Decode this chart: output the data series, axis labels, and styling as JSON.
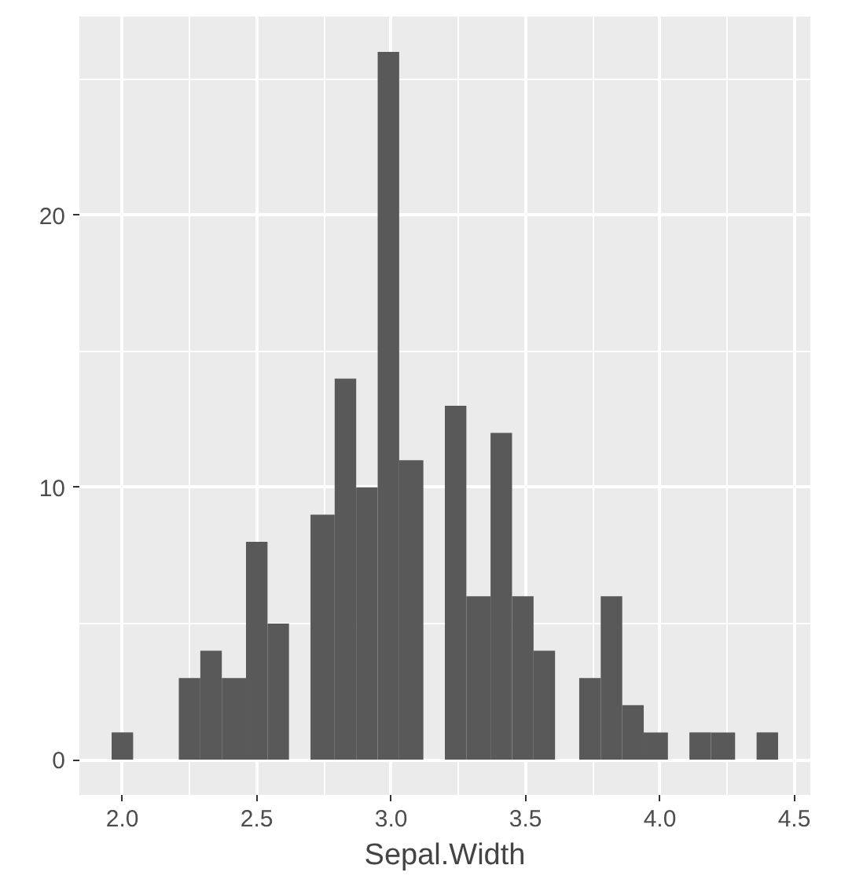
{
  "chart_data": {
    "type": "histogram",
    "xlabel": "Sepal.Width",
    "bins": [
      1.96,
      2.04,
      2.21,
      2.29,
      2.37,
      2.46,
      2.54,
      2.62,
      2.7,
      2.79,
      2.87,
      2.95,
      3.03,
      3.12,
      3.2,
      3.28,
      3.37,
      3.45,
      3.53,
      3.61,
      3.7,
      3.78,
      3.86,
      3.94,
      4.03,
      4.11,
      4.19,
      4.28,
      4.36,
      4.44
    ],
    "values": [
      1,
      0,
      3,
      4,
      3,
      8,
      5,
      0,
      9,
      14,
      10,
      26,
      11,
      0,
      13,
      6,
      12,
      6,
      4,
      0,
      3,
      6,
      2,
      1,
      0,
      1,
      1,
      0,
      1
    ],
    "color": "#595959",
    "xlim": [
      1.84,
      4.56
    ],
    "ylim": [
      -1.3,
      27.3
    ],
    "xticks": [
      {
        "value": 2.0,
        "label": "2.0"
      },
      {
        "value": 2.5,
        "label": "2.5"
      },
      {
        "value": 3.0,
        "label": "3.0"
      },
      {
        "value": 3.5,
        "label": "3.5"
      },
      {
        "value": 4.0,
        "label": "4.0"
      },
      {
        "value": 4.5,
        "label": "4.5"
      }
    ],
    "yticks": [
      0,
      10,
      20
    ],
    "grid": true
  }
}
